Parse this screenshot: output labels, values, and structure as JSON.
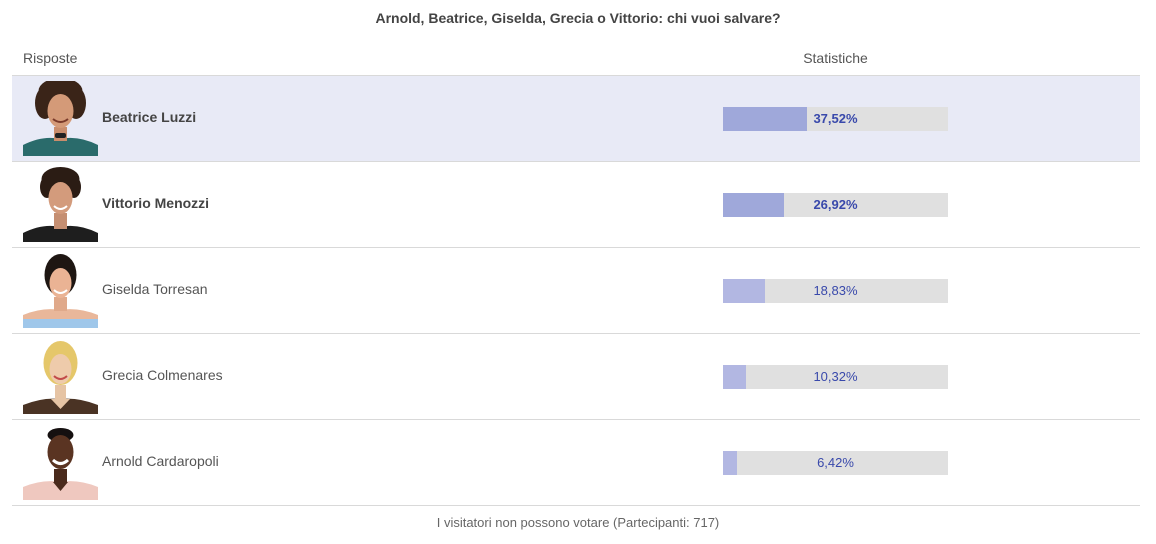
{
  "poll": {
    "question": "Arnold, Beatrice, Giselda, Grecia o Vittorio: chi vuoi salvare?",
    "header_answers": "Risposte",
    "header_stats": "Statistiche",
    "footer": "I visitatori non possono votare (Partecipanti: 717)",
    "colors": {
      "fill_strong": "#9fa8da",
      "fill_light": "#b2b7e2",
      "track": "#e0e0e0",
      "highlight_row": "#e8eaf6",
      "percent_text": "#3949ab"
    },
    "options": [
      {
        "name": "Beatrice Luzzi",
        "percent_label": "37,52%",
        "percent": 37.52,
        "bold": true,
        "highlight": true,
        "photo": "beatrice-photo"
      },
      {
        "name": "Vittorio Menozzi",
        "percent_label": "26,92%",
        "percent": 26.92,
        "bold": true,
        "highlight": false,
        "photo": "vittorio-photo"
      },
      {
        "name": "Giselda Torresan",
        "percent_label": "18,83%",
        "percent": 18.83,
        "bold": false,
        "highlight": false,
        "photo": "giselda-photo"
      },
      {
        "name": "Grecia Colmenares",
        "percent_label": "10,32%",
        "percent": 10.32,
        "bold": false,
        "highlight": false,
        "photo": "grecia-photo"
      },
      {
        "name": "Arnold Cardaropoli",
        "percent_label": "6,42%",
        "percent": 6.42,
        "bold": false,
        "highlight": false,
        "photo": "arnold-photo"
      }
    ]
  }
}
